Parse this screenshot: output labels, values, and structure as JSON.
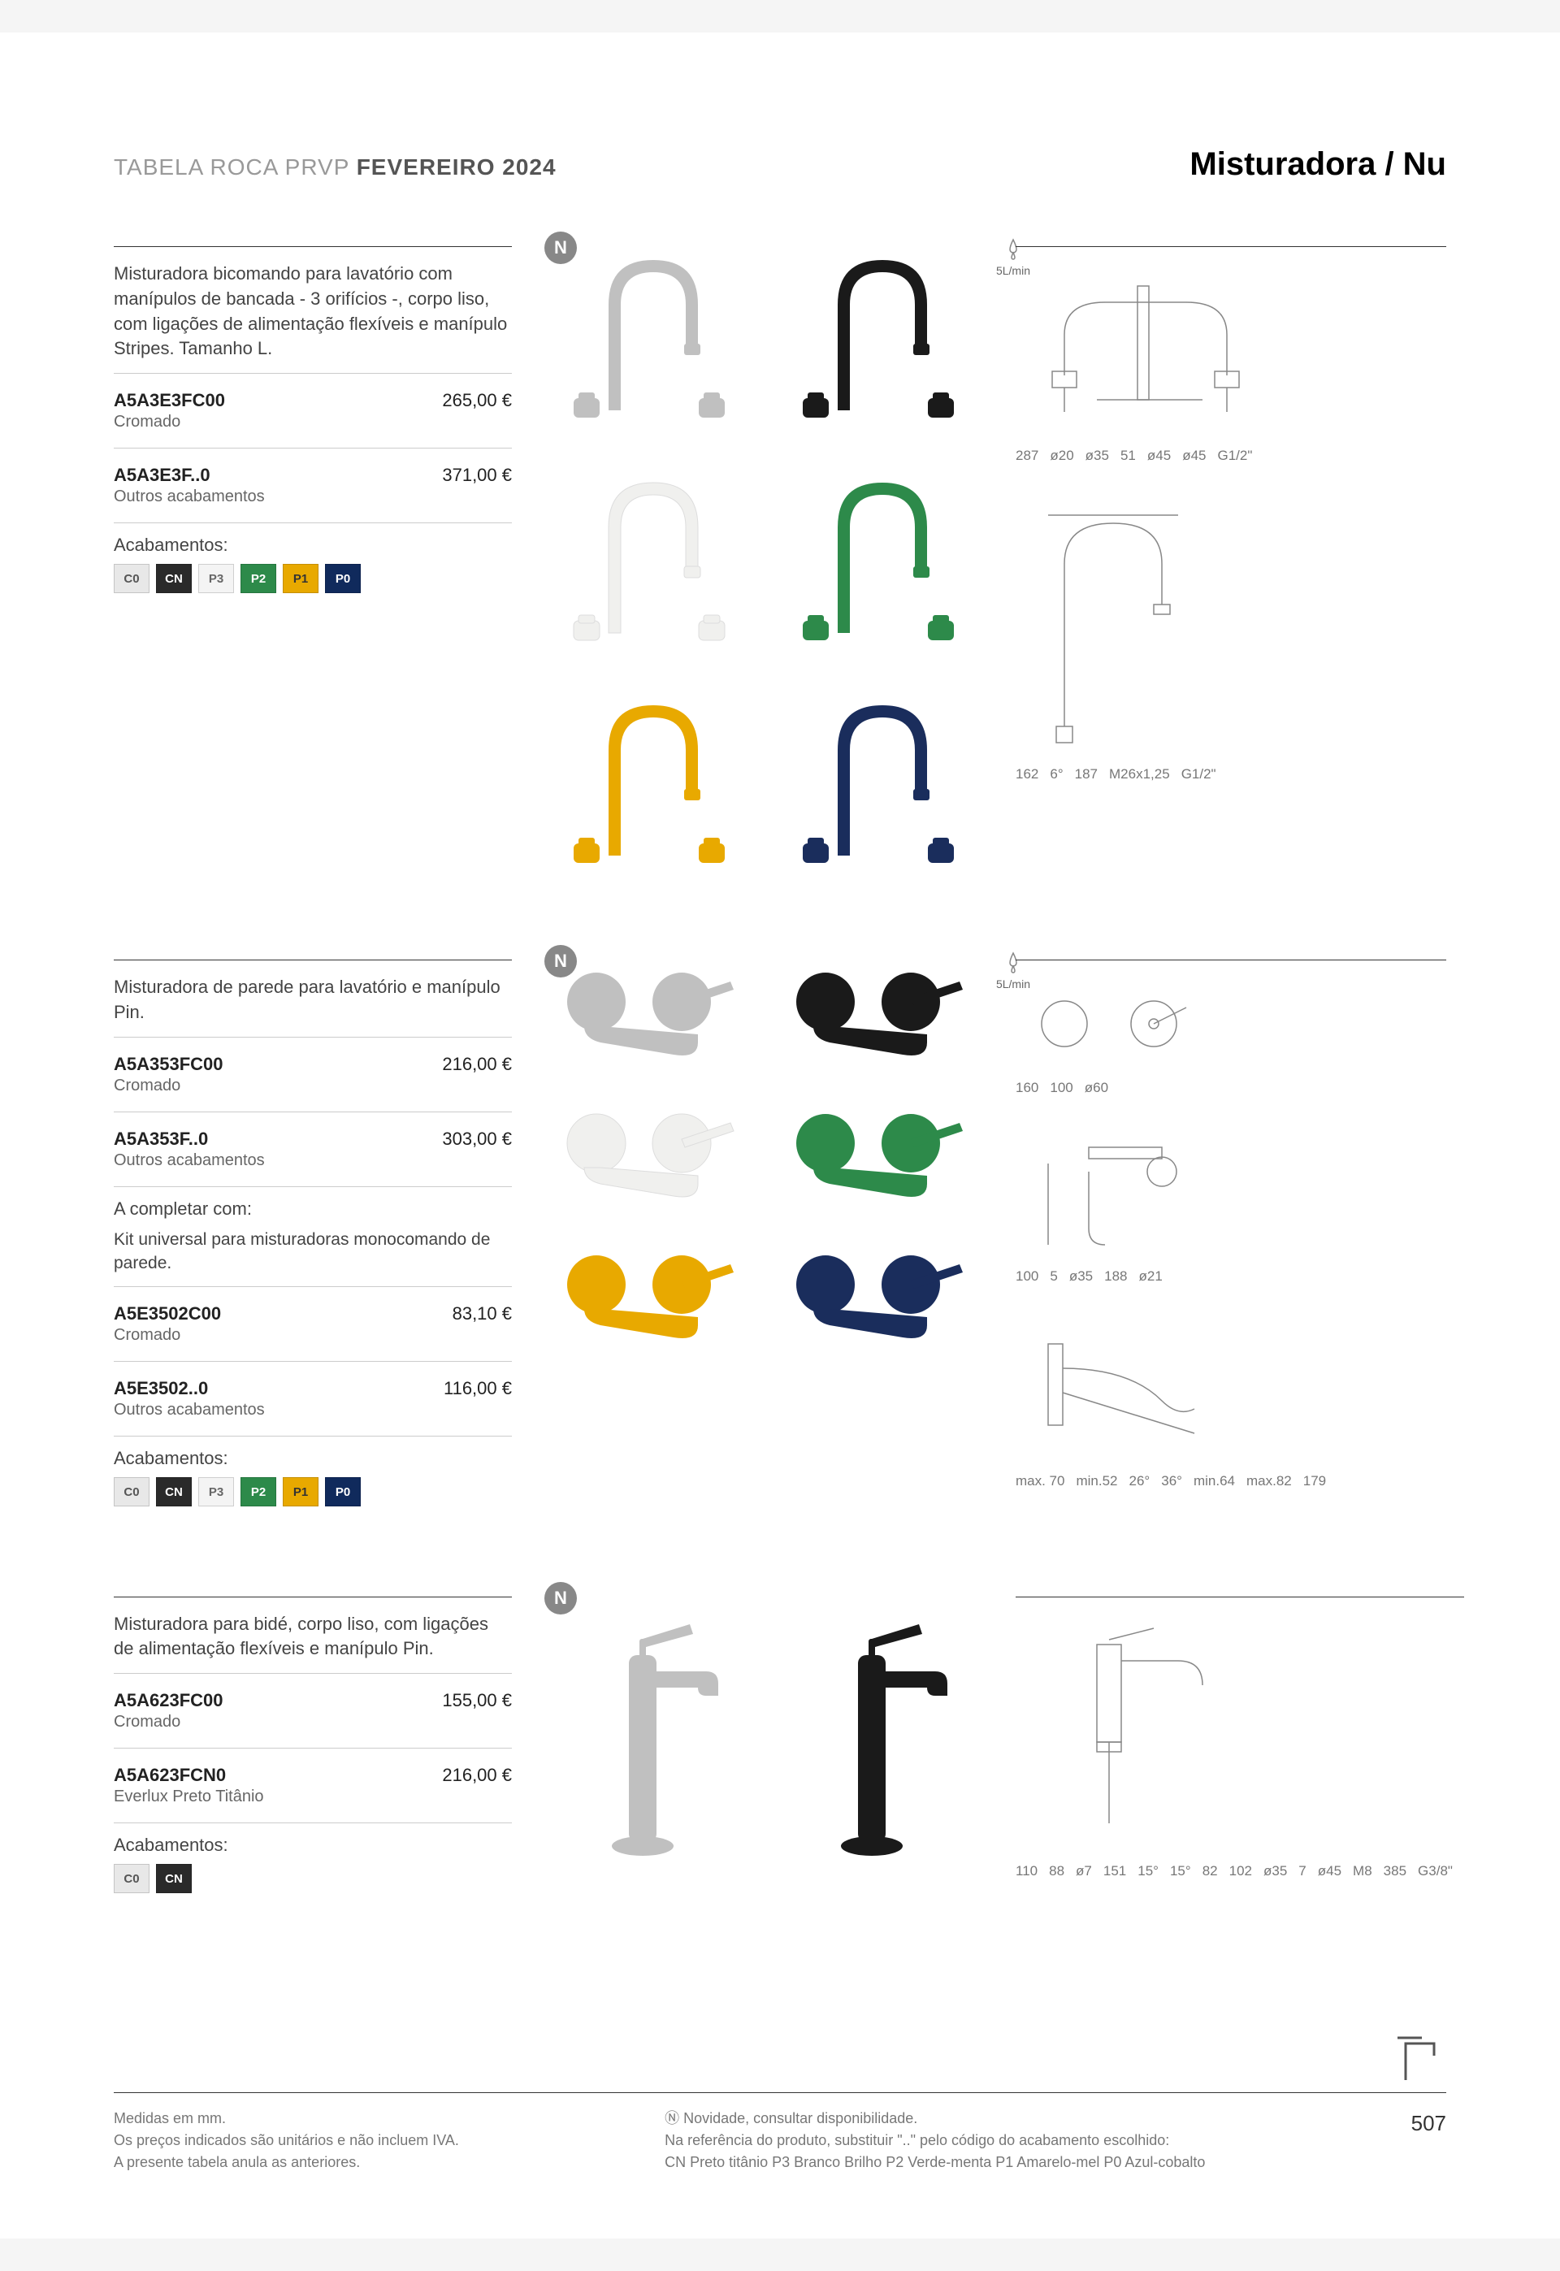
{
  "header": {
    "left_prefix": "TABELA ROCA PRVP ",
    "left_bold": "FEVEREIRO 2024",
    "right": "Misturadora / Nu"
  },
  "sections": [
    {
      "desc": "Misturadora bicomando para lavatório com manípulos de bancada - 3 orifícios -, corpo liso, com ligações de alimentação flexíveis e manípulo Stripes. Tamanho L.",
      "skus": [
        {
          "code": "A5A3E3FC00",
          "sub": "Cromado",
          "price": "265,00 €"
        },
        {
          "code": "A5A3E3F..0",
          "sub": "Outros acabamentos",
          "price": "371,00 €"
        }
      ],
      "finishes_label": "Acabamentos:",
      "finishes": [
        {
          "code": "C0",
          "bg": "#e8e8e8",
          "fg": "#555"
        },
        {
          "code": "CN",
          "bg": "#2a2a2a",
          "fg": "#fff"
        },
        {
          "code": "P3",
          "bg": "#f4f4f4",
          "fg": "#666"
        },
        {
          "code": "P2",
          "bg": "#2d8a4a",
          "fg": "#fff"
        },
        {
          "code": "P1",
          "bg": "#e8a900",
          "fg": "#333"
        },
        {
          "code": "P0",
          "bg": "#102a5c",
          "fg": "#fff"
        }
      ],
      "flow": "5L/min",
      "product_colors": [
        "#c0c0c0",
        "#1a1a1a",
        "#f0f0ee",
        "#2d8a4a",
        "#e8a900",
        "#1a2d5c"
      ],
      "tech_dims": {
        "d1": [
          "287",
          "ø20",
          "ø35",
          "51",
          "ø45",
          "ø45",
          "G1/2\""
        ],
        "d2": [
          "162",
          "6°",
          "187",
          "M26x1,25",
          "G1/2\""
        ]
      }
    },
    {
      "desc": "Misturadora de parede para lavatório e manípulo Pin.",
      "skus": [
        {
          "code": "A5A353FC00",
          "sub": "Cromado",
          "price": "216,00 €"
        },
        {
          "code": "A5A353F..0",
          "sub": "Outros acabamentos",
          "price": "303,00 €"
        }
      ],
      "complement_label": "A completar com:",
      "complement_desc": "Kit universal para misturadoras monocomando de parede.",
      "skus2": [
        {
          "code": "A5E3502C00",
          "sub": "Cromado",
          "price": "83,10 €"
        },
        {
          "code": "A5E3502..0",
          "sub": "Outros acabamentos",
          "price": "116,00 €"
        }
      ],
      "finishes_label": "Acabamentos:",
      "finishes": [
        {
          "code": "C0",
          "bg": "#e8e8e8",
          "fg": "#555"
        },
        {
          "code": "CN",
          "bg": "#2a2a2a",
          "fg": "#fff"
        },
        {
          "code": "P3",
          "bg": "#f4f4f4",
          "fg": "#666"
        },
        {
          "code": "P2",
          "bg": "#2d8a4a",
          "fg": "#fff"
        },
        {
          "code": "P1",
          "bg": "#e8a900",
          "fg": "#333"
        },
        {
          "code": "P0",
          "bg": "#102a5c",
          "fg": "#fff"
        }
      ],
      "flow": "5L/min",
      "product_colors": [
        "#c0c0c0",
        "#1a1a1a",
        "#f0f0ee",
        "#2d8a4a",
        "#e8a900",
        "#1a2d5c"
      ],
      "tech_dims": {
        "d1": [
          "160",
          "100",
          "ø60"
        ],
        "d2": [
          "100",
          "5",
          "ø35",
          "188",
          "ø21"
        ],
        "d3": [
          "max. 70",
          "min.52",
          "26°",
          "36°",
          "min.64",
          "max.82",
          "179"
        ]
      }
    },
    {
      "desc": "Misturadora para bidé, corpo liso, com ligações de alimentação flexíveis e manípulo Pin.",
      "skus": [
        {
          "code": "A5A623FC00",
          "sub": "Cromado",
          "price": "155,00 €"
        },
        {
          "code": "A5A623FCN0",
          "sub": "Everlux Preto Titânio",
          "price": "216,00 €"
        }
      ],
      "finishes_label": "Acabamentos:",
      "finishes": [
        {
          "code": "C0",
          "bg": "#e8e8e8",
          "fg": "#555"
        },
        {
          "code": "CN",
          "bg": "#2a2a2a",
          "fg": "#fff"
        }
      ],
      "product_colors": [
        "#c0c0c0",
        "#1a1a1a"
      ],
      "tech_dims": {
        "d1": [
          "110",
          "88",
          "ø7",
          "151",
          "15°",
          "15°",
          "82",
          "102",
          "ø35",
          "7",
          "ø45",
          "M8",
          "385",
          "G3/8\""
        ]
      }
    }
  ],
  "footer": {
    "left": [
      "Medidas em mm.",
      "Os preços indicados são unitários e não incluem IVA.",
      "A presente tabela anula as anteriores."
    ],
    "mid": [
      "Ⓝ Novidade, consultar disponibilidade.",
      "Na referência do produto, substituir \"..\" pelo código do acabamento escolhido:",
      "CN Preto titânio   P3 Branco Brilho   P2 Verde-menta   P1 Amarelo-mel   P0 Azul-cobalto"
    ],
    "page": "507"
  }
}
